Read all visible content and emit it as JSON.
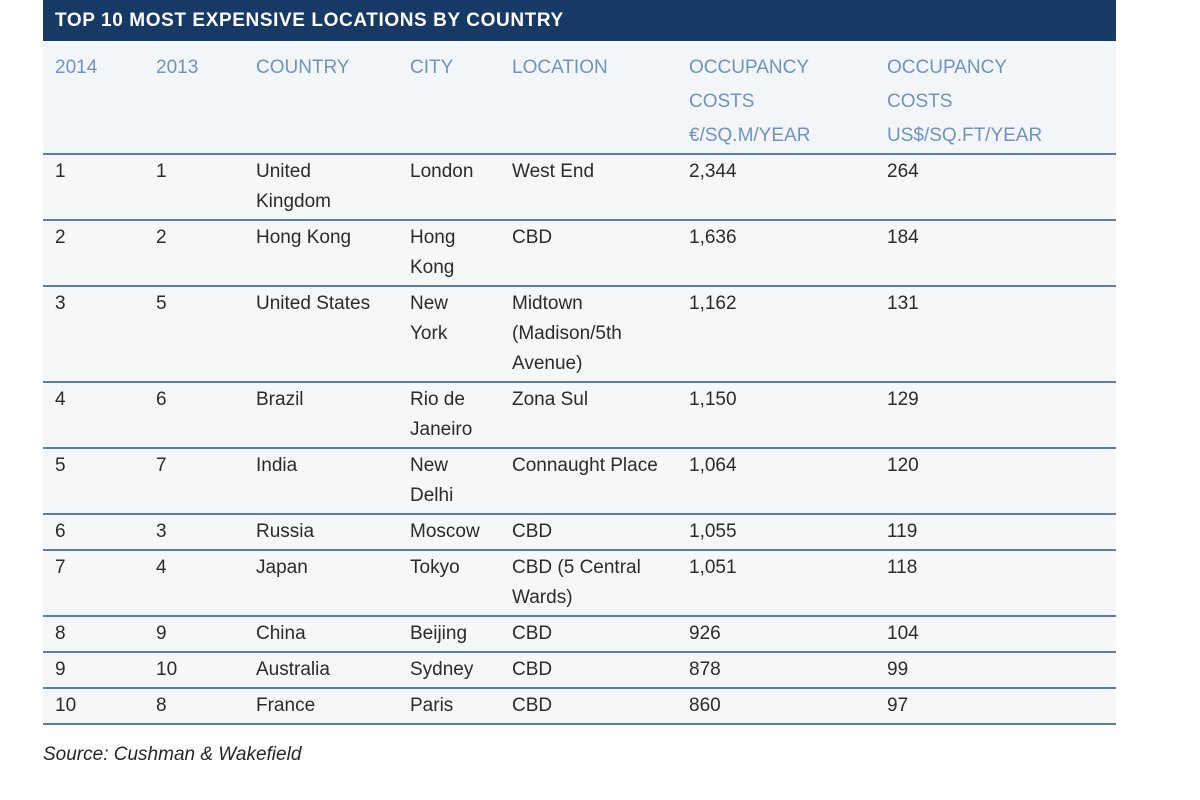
{
  "title": "TOP 10 MOST EXPENSIVE LOCATIONS BY COUNTRY",
  "headers": [
    [
      "2014"
    ],
    [
      "2013"
    ],
    [
      "COUNTRY"
    ],
    [
      "CITY"
    ],
    [
      "LOCATION"
    ],
    [
      "OCCUPANCY",
      "COSTS",
      "€/SQ.M/YEAR"
    ],
    [
      "OCCUPANCY",
      "COSTS",
      "US$/SQ.FT/YEAR"
    ]
  ],
  "rows": [
    [
      "1",
      "1",
      "United Kingdom",
      "London",
      "West End",
      "2,344",
      "264"
    ],
    [
      "2",
      "2",
      "Hong Kong",
      "Hong Kong",
      "CBD",
      "1,636",
      "184"
    ],
    [
      "3",
      "5",
      "United States",
      "New York",
      "Midtown (Madison/5th Avenue)",
      "1,162",
      "131"
    ],
    [
      "4",
      "6",
      "Brazil",
      "Rio de Janeiro",
      "Zona Sul",
      "1,150",
      "129"
    ],
    [
      "5",
      "7",
      "India",
      "New Delhi",
      "Connaught Place",
      "1,064",
      "120"
    ],
    [
      "6",
      "3",
      "Russia",
      "Moscow",
      "CBD",
      "1,055",
      "119"
    ],
    [
      "7",
      "4",
      "Japan",
      "Tokyo",
      "CBD (5 Central Wards)",
      "1,051",
      "118"
    ],
    [
      "8",
      "9",
      "China",
      "Beijing",
      "CBD",
      "926",
      "104"
    ],
    [
      "9",
      "10",
      "Australia",
      "Sydney",
      "CBD",
      "878",
      "99"
    ],
    [
      "10",
      "8",
      "France",
      "Paris",
      "CBD",
      "860",
      "97"
    ]
  ],
  "source": "Source: Cushman & Wakefield"
}
